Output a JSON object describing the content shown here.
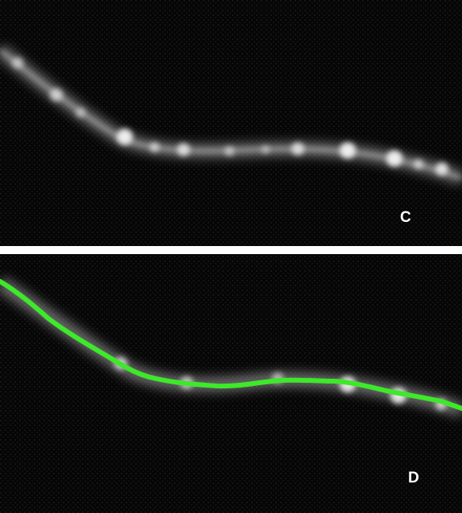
{
  "panels": [
    {
      "label": "C",
      "trace_overlay": false,
      "background_color": "#060606"
    },
    {
      "label": "D",
      "trace_overlay": true,
      "background_color": "#060606",
      "trace_color": "#3ee82a"
    }
  ],
  "divider_color": "#ffffff"
}
